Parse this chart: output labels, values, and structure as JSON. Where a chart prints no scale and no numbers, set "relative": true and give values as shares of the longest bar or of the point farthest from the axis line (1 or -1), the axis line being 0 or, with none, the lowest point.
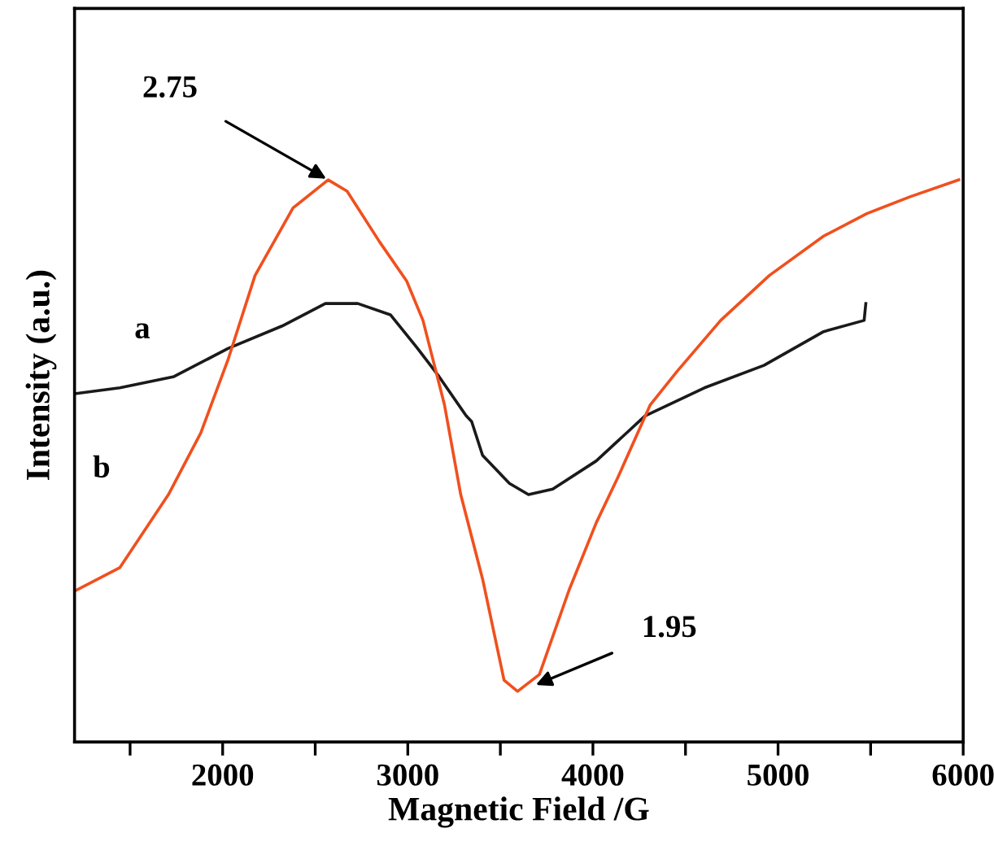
{
  "chart_data": {
    "type": "line",
    "relative": true,
    "xlabel": "Magnetic Field /G",
    "ylabel": "Intensity (a.u.)",
    "xlim": [
      1200,
      6000
    ],
    "xticks": [
      {
        "value": 1500,
        "label": null
      },
      2000,
      {
        "value": 2500,
        "label": null
      },
      3000,
      {
        "value": 3500,
        "label": null
      },
      4000,
      {
        "value": 4500,
        "label": null
      },
      5000,
      {
        "value": 5500,
        "label": null
      },
      6000
    ],
    "tick_labels": "x",
    "grid": false,
    "legend": false,
    "marker": "none",
    "line_style": "solid",
    "annotations": [
      {
        "text": "2.75",
        "x": 2570,
        "y": 1.0
      },
      {
        "text": "1.95",
        "x": 3680,
        "y": 0.1
      }
    ],
    "series": [
      {
        "name": "a",
        "color": "#1a1a1a",
        "x": [
          1209,
          1444,
          1737,
          2029,
          2321,
          2555,
          2730,
          2906,
          3053,
          3169,
          3316,
          3345,
          3404,
          3549,
          3652,
          3783,
          4018,
          4281,
          4602,
          4924,
          5246,
          5465,
          5474
        ],
        "values": [
          0.62,
          0.63,
          0.65,
          0.7,
          0.74,
          0.78,
          0.78,
          0.76,
          0.7,
          0.65,
          0.58,
          0.57,
          0.51,
          0.46,
          0.44,
          0.45,
          0.5,
          0.58,
          0.63,
          0.67,
          0.73,
          0.75,
          0.78
        ]
      },
      {
        "name": "b",
        "color": "#f0501e",
        "x": [
          1209,
          1444,
          1707,
          1882,
          2029,
          2175,
          2380,
          2570,
          2672,
          2847,
          2994,
          3082,
          3198,
          3286,
          3404,
          3520,
          3593,
          3711,
          3871,
          4018,
          4134,
          4310,
          4456,
          4690,
          4953,
          5246,
          5479,
          5713,
          5976
        ],
        "values": [
          0.27,
          0.31,
          0.44,
          0.55,
          0.68,
          0.83,
          0.95,
          1.0,
          0.98,
          0.89,
          0.82,
          0.75,
          0.6,
          0.44,
          0.29,
          0.11,
          0.09,
          0.12,
          0.27,
          0.39,
          0.47,
          0.6,
          0.66,
          0.75,
          0.83,
          0.9,
          0.94,
          0.97,
          1.0
        ]
      }
    ]
  }
}
